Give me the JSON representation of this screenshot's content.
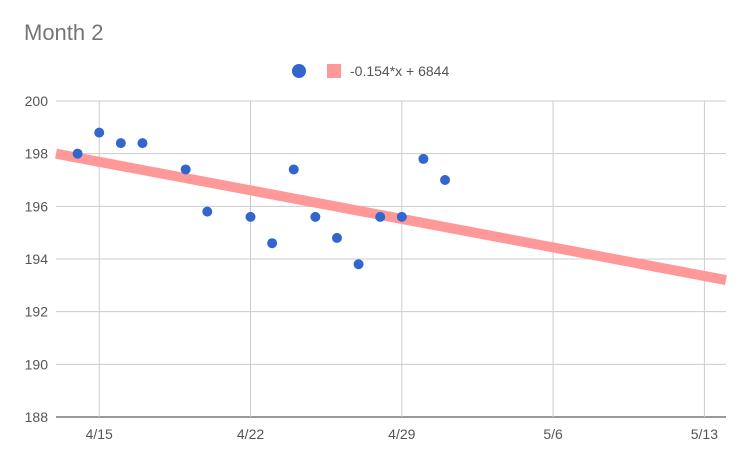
{
  "chart_data": {
    "type": "scatter",
    "title": "Month 2",
    "xlabel": "",
    "ylabel": "",
    "x_axis_type": "date",
    "x_range": [
      "2018-04-13",
      "2018-05-14"
    ],
    "ylim": [
      188,
      200
    ],
    "y_ticks": [
      188,
      190,
      192,
      194,
      196,
      198,
      200
    ],
    "x_ticks": [
      {
        "date": "2018-04-15",
        "label": "4/15"
      },
      {
        "date": "2018-04-22",
        "label": "4/22"
      },
      {
        "date": "2018-04-29",
        "label": "4/29"
      },
      {
        "date": "2018-05-06",
        "label": "5/6"
      },
      {
        "date": "2018-05-13",
        "label": "5/13"
      }
    ],
    "grid": true,
    "legend_position": "top",
    "series": [
      {
        "name": "",
        "color": "#3366cc",
        "points": [
          {
            "x": "2018-04-14",
            "y": 198.0
          },
          {
            "x": "2018-04-15",
            "y": 198.8
          },
          {
            "x": "2018-04-16",
            "y": 198.4
          },
          {
            "x": "2018-04-17",
            "y": 198.4
          },
          {
            "x": "2018-04-19",
            "y": 197.4
          },
          {
            "x": "2018-04-20",
            "y": 195.8
          },
          {
            "x": "2018-04-22",
            "y": 195.6
          },
          {
            "x": "2018-04-23",
            "y": 194.6
          },
          {
            "x": "2018-04-24",
            "y": 197.4
          },
          {
            "x": "2018-04-25",
            "y": 195.6
          },
          {
            "x": "2018-04-26",
            "y": 194.8
          },
          {
            "x": "2018-04-27",
            "y": 193.8
          },
          {
            "x": "2018-04-28",
            "y": 195.6
          },
          {
            "x": "2018-04-29",
            "y": 195.6
          },
          {
            "x": "2018-04-30",
            "y": 197.8
          },
          {
            "x": "2018-05-01",
            "y": 197.0
          }
        ]
      }
    ],
    "trendline": {
      "label": "-0.154*x + 6844",
      "color": "#ff9999",
      "start": {
        "x": "2018-04-13",
        "y": 198.0
      },
      "end": {
        "x": "2018-05-14",
        "y": 193.2
      }
    }
  }
}
